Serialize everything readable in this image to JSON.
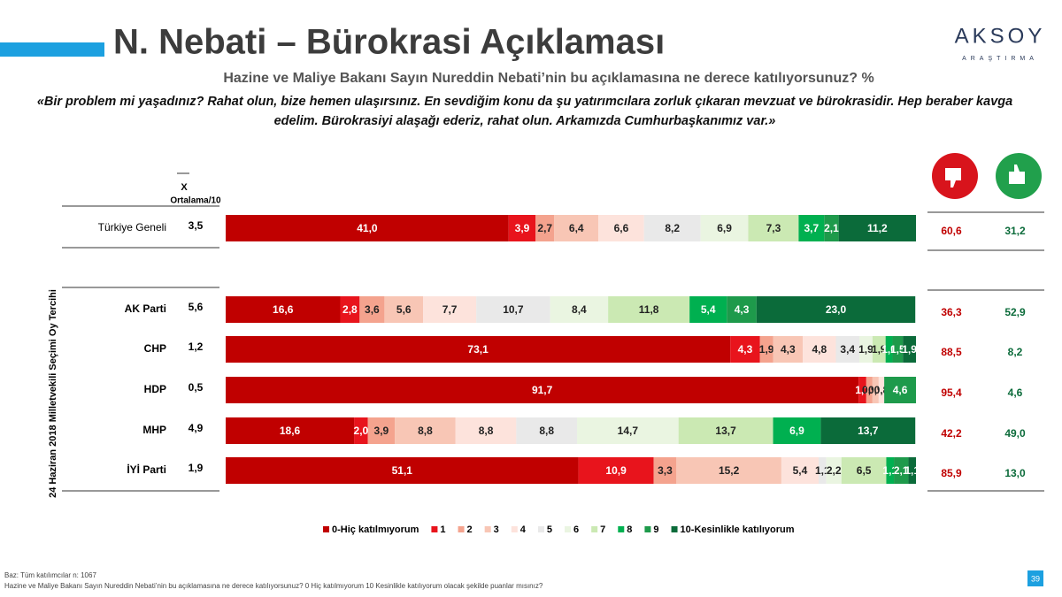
{
  "header": {
    "title": "N. Nebati – Bürokrasi Açıklaması",
    "subtitle": "Hazine ve Maliye Bakanı Sayın Nureddin Nebati’nin bu açıklamasına ne derece katılıyorsunuz? %",
    "quote_line1": "«Bir problem mi yaşadınız? Rahat olun, bize hemen ulaşırsınız. En sevdiğim konu da şu yatırımcılara zorluk çıkaran mevzuat ve bürokrasidir. Hep beraber kavga",
    "quote_line2": "edelim. Bürokrasiyi alaşağı ederiz, rahat olun. Arkamızda Cumhurbaşkanımız var.»",
    "logo": "AKSOY",
    "logo_sub": "ARAŞTIRMA"
  },
  "chart_data": {
    "type": "stacked-bar-horizontal",
    "y_axis_label": "24 Haziran 2018 Milletvekili Seçimi Oy Tercihi",
    "categories": [
      "Türkiye Geneli",
      "AK Parti",
      "CHP",
      "HDP",
      "MHP",
      "İYİ Parti"
    ],
    "xlim": [
      0,
      100
    ],
    "average": {
      "symbol": "X",
      "label": "Ortalama/10",
      "values": [
        3.5,
        5.6,
        1.2,
        0.5,
        4.9,
        1.9
      ],
      "value_labels": [
        "3,5",
        "5,6",
        "1,2",
        "0,5",
        "4,9",
        "1,9"
      ]
    },
    "disagree": {
      "color": "#c00000",
      "values": [
        60.6,
        36.3,
        88.5,
        95.4,
        42.2,
        85.9
      ],
      "value_labels": [
        "60,6",
        "36,3",
        "88,5",
        "95,4",
        "42,2",
        "85,9"
      ]
    },
    "agree": {
      "color": "#0b6b3a",
      "values": [
        31.2,
        52.9,
        8.2,
        4.6,
        49.0,
        13.0
      ],
      "value_labels": [
        "31,2",
        "52,9",
        "8,2",
        "4,6",
        "49,0",
        "13,0"
      ]
    },
    "series": [
      {
        "name": "0-Hiç katılmıyorum",
        "color": "#c00000",
        "values": [
          41.0,
          16.6,
          73.1,
          91.7,
          18.6,
          51.1
        ],
        "value_labels": [
          "41,0",
          "16,6",
          "73,1",
          "91,7",
          "18,6",
          "51,1"
        ]
      },
      {
        "name": "1",
        "color": "#e8141c",
        "values": [
          3.9,
          2.8,
          4.3,
          1.1,
          2.0,
          10.9
        ],
        "value_labels": [
          "3,9",
          "2,8",
          "4,3",
          "1,1",
          "2,0",
          "10,9"
        ]
      },
      {
        "name": "2",
        "color": "#f4a38e",
        "values": [
          2.7,
          3.6,
          1.9,
          0.9,
          3.9,
          3.3
        ],
        "value_labels": [
          "2,7",
          "3,6",
          "1,9",
          "0,9",
          "3,9",
          "3,3"
        ]
      },
      {
        "name": "3",
        "color": "#f8c6b5",
        "values": [
          6.4,
          5.6,
          4.3,
          0.9,
          8.8,
          15.2
        ],
        "value_labels": [
          "6,4",
          "5,6",
          "4,3",
          "0,9",
          "8,8",
          "15,2"
        ]
      },
      {
        "name": "4",
        "color": "#fde3dc",
        "values": [
          6.6,
          7.7,
          4.8,
          0.8,
          8.8,
          5.4
        ],
        "value_labels": [
          "6,6",
          "7,7",
          "4,8",
          "0,8",
          "8,8",
          "5,4"
        ]
      },
      {
        "name": "5",
        "color": "#e9e9e9",
        "values": [
          8.2,
          10.7,
          3.4,
          0,
          8.8,
          1.1
        ],
        "value_labels": [
          "8,2",
          "10,7",
          "3,4",
          null,
          "8,8",
          "1,1"
        ]
      },
      {
        "name": "6",
        "color": "#eaf5e1",
        "values": [
          6.9,
          8.4,
          1.9,
          0,
          14.7,
          2.2
        ],
        "value_labels": [
          "6,9",
          "8,4",
          "1,9",
          null,
          "14,7",
          "2,2"
        ]
      },
      {
        "name": "7",
        "color": "#cbe9b3",
        "values": [
          7.3,
          11.8,
          1.9,
          0,
          13.7,
          6.5
        ],
        "value_labels": [
          "7,3",
          "11,8",
          "1,9",
          null,
          "13,7",
          "6,5"
        ]
      },
      {
        "name": "8",
        "color": "#00b050",
        "values": [
          3.7,
          5.4,
          1.0,
          0,
          6.9,
          1.1
        ],
        "value_labels": [
          "3,7",
          "5,4",
          "1,0",
          null,
          "6,9",
          "1,1"
        ]
      },
      {
        "name": "9",
        "color": "#1e9a4b",
        "values": [
          2.1,
          4.3,
          1.5,
          4.6,
          0,
          2.1
        ],
        "value_labels": [
          "2,1",
          "4,3",
          "1,5",
          "4,6",
          null,
          "2,1"
        ]
      },
      {
        "name": "10-Kesinlikle katılıyorum",
        "color": "#0b6b3a",
        "values": [
          11.2,
          23.0,
          1.9,
          0,
          13.7,
          1.1
        ],
        "value_labels": [
          "11,2",
          "23,0",
          "1,9",
          null,
          "13,7",
          "1,1"
        ]
      }
    ]
  },
  "footer": {
    "base": "Baz: Tüm katılımcılar n: 1067",
    "question": "Hazine ve Maliye Bakanı Sayın Nureddin Nebati’nin bu açıklamasına ne derece katılıyorsunuz? 0 Hiç katılmıyorum 10 Kesinlikle katılıyorum olacak şekilde puanlar mısınız?",
    "page": "39"
  }
}
